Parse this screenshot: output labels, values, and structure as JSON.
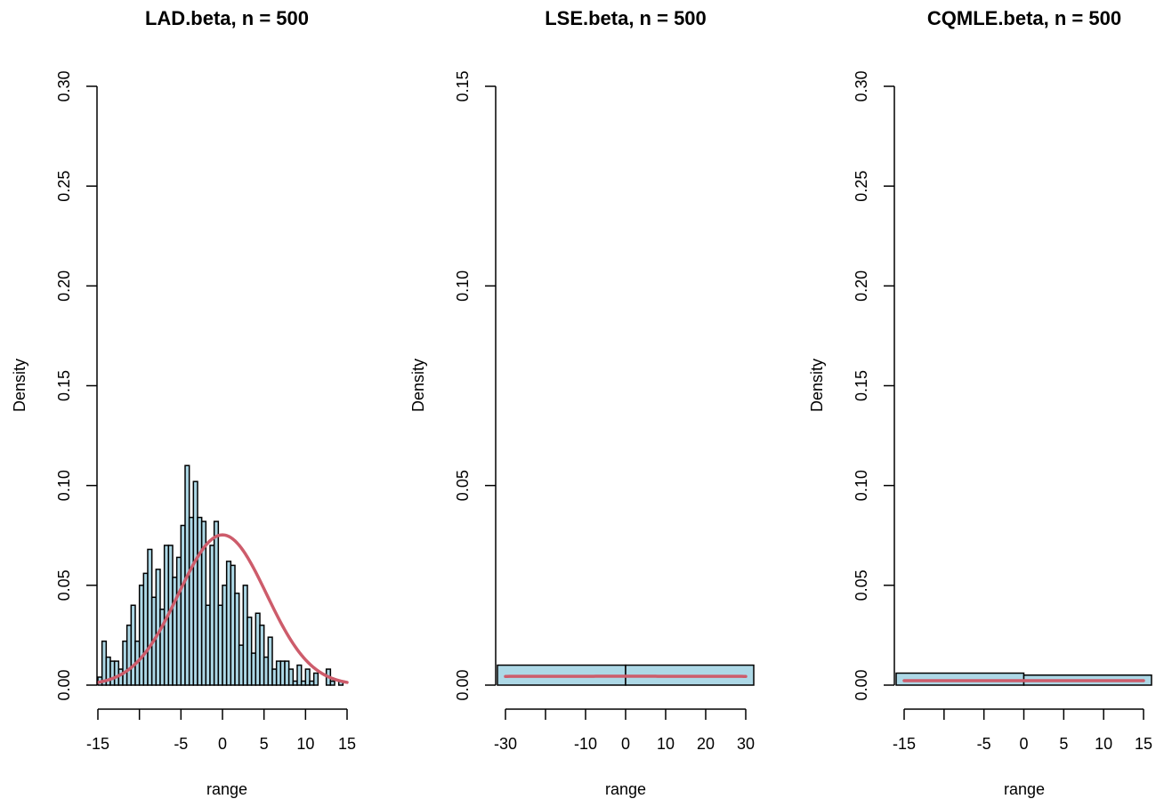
{
  "chart_data": [
    {
      "type": "histogram",
      "title": "LAD.beta, n = 500",
      "xlabel": "range",
      "ylabel": "Density",
      "xlim": [
        -16,
        15
      ],
      "ylim": [
        0,
        0.3
      ],
      "xticks": [
        -15,
        -10,
        -5,
        0,
        5,
        10,
        15
      ],
      "xtick_labels": [
        "-15",
        "",
        "-5",
        "0",
        "5",
        "10",
        "15"
      ],
      "yticks": [
        0,
        0.05,
        0.1,
        0.15,
        0.2,
        0.25,
        0.3
      ],
      "ytick_labels": [
        "0.00",
        "0.05",
        "0.10",
        "0.15",
        "0.20",
        "0.25",
        "0.30"
      ],
      "bin_start": -16,
      "bin_width": 0.5,
      "densities": [
        0.01,
        0.008,
        0.004,
        0.022,
        0.014,
        0.012,
        0.012,
        0.008,
        0.022,
        0.03,
        0.04,
        0.022,
        0.05,
        0.056,
        0.068,
        0.044,
        0.058,
        0.038,
        0.07,
        0.07,
        0.054,
        0.064,
        0.08,
        0.11,
        0.084,
        0.102,
        0.084,
        0.082,
        0.04,
        0.07,
        0.082,
        0.04,
        0.05,
        0.062,
        0.06,
        0.046,
        0.02,
        0.05,
        0.034,
        0.016,
        0.036,
        0.03,
        0.014,
        0.024,
        0.008,
        0.012,
        0.012,
        0.012,
        0.008,
        0.002,
        0.01,
        0.002,
        0.008,
        0.002,
        0.006,
        0.0,
        0.0,
        0.008,
        0.002,
        0.0,
        0.002
      ],
      "curve": {
        "type": "normal",
        "mean": 0,
        "sd": 5.3,
        "from": -15,
        "to": 15
      },
      "colors": {
        "bar_fill": "#add8e6",
        "curve": "#cd5c6b"
      }
    },
    {
      "type": "histogram",
      "title": "LSE.beta, n = 500",
      "xlabel": "range",
      "ylabel": "Density",
      "xlim": [
        -32,
        32
      ],
      "ylim": [
        0,
        0.15
      ],
      "xticks": [
        -30,
        -20,
        -10,
        0,
        10,
        20,
        30
      ],
      "xtick_labels": [
        "-30",
        "",
        "-10",
        "0",
        "10",
        "20",
        "30"
      ],
      "yticks": [
        0,
        0.05,
        0.1,
        0.15
      ],
      "ytick_labels": [
        "0.00",
        "0.05",
        "0.10",
        "0.15"
      ],
      "bin_start": -32,
      "bin_width": 32,
      "densities": [
        0.005,
        0.005
      ],
      "curve": {
        "type": "normal",
        "mean": 0,
        "sd": 180,
        "from": -30,
        "to": 30
      },
      "colors": {
        "bar_fill": "#add8e6",
        "curve": "#cd5c6b"
      }
    },
    {
      "type": "histogram",
      "title": "CQMLE.beta, n = 500",
      "xlabel": "range",
      "ylabel": "Density",
      "xlim": [
        -16,
        16
      ],
      "ylim": [
        0,
        0.3
      ],
      "xticks": [
        -15,
        -10,
        -5,
        0,
        5,
        10,
        15
      ],
      "xtick_labels": [
        "-15",
        "",
        "-5",
        "0",
        "5",
        "10",
        "15"
      ],
      "yticks": [
        0,
        0.05,
        0.1,
        0.15,
        0.2,
        0.25,
        0.3
      ],
      "ytick_labels": [
        "0.00",
        "0.05",
        "0.10",
        "0.15",
        "0.20",
        "0.25",
        "0.30"
      ],
      "bin_start": -16,
      "bin_width": 16,
      "densities": [
        0.006,
        0.005
      ],
      "curve": {
        "type": "normal",
        "mean": 0,
        "sd": 180,
        "from": -15,
        "to": 15
      },
      "colors": {
        "bar_fill": "#add8e6",
        "curve": "#cd5c6b"
      }
    }
  ]
}
